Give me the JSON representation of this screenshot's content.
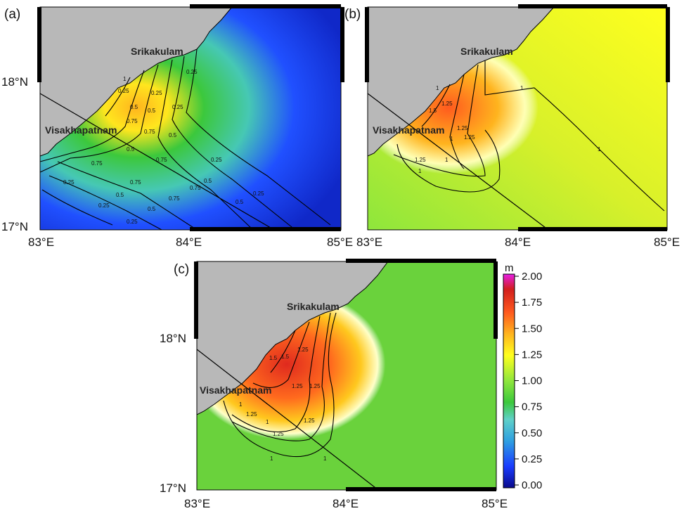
{
  "panels": [
    {
      "label": "(a)",
      "places": {
        "srikakulam": "Srikakulam",
        "visakhapatnam": "Visakhapatnam"
      },
      "contour_labels": [
        "0.25",
        "0.5",
        "0.75",
        "1",
        "0.25",
        "0.5",
        "0.75",
        "0.25",
        "0.5",
        "0.25",
        "0.75",
        "0.5",
        "0.25",
        "0.75",
        "0.5",
        "0.75",
        "0.25",
        "0.5",
        "0.75",
        "0.25",
        "0.5",
        "0.75",
        "0.25",
        "0.5",
        "0.25"
      ]
    },
    {
      "label": "(b)",
      "places": {
        "srikakulam": "Srikakulam",
        "visakhapatnam": "Visakhapatnam"
      },
      "contour_labels": [
        "1.5",
        "1.25",
        "1",
        "1.25",
        "1",
        "1.25",
        "1.25",
        "1",
        "1",
        "1",
        "1"
      ]
    },
    {
      "label": "(c)",
      "places": {
        "srikakulam": "Srikakulam",
        "visakhapatnam": "Visakhapatnam"
      },
      "contour_labels": [
        "1.5",
        "1.5",
        "1.25",
        "1.25",
        "1.25",
        "1",
        "1.25",
        "1.25",
        "1.25",
        "1",
        "1",
        "1"
      ]
    }
  ],
  "axes": {
    "x_ticks": [
      "83°E",
      "84°E",
      "85°E"
    ],
    "y_ticks": [
      "18°N",
      "17°N"
    ]
  },
  "colorbar": {
    "unit": "m",
    "ticks": [
      "2.00",
      "1.75",
      "1.50",
      "1.25",
      "1.00",
      "0.75",
      "0.50",
      "0.25",
      "0.00"
    ],
    "colors": [
      "#0a0a8c",
      "#1a3cff",
      "#2fa0e0",
      "#5fd0c8",
      "#3cc83c",
      "#8ee63c",
      "#ffff1e",
      "#ffb41e",
      "#ff5a1e",
      "#d21e1e",
      "#e61ee6"
    ]
  },
  "colors": {
    "land": "#b8b8b8",
    "frame": "#000000"
  }
}
